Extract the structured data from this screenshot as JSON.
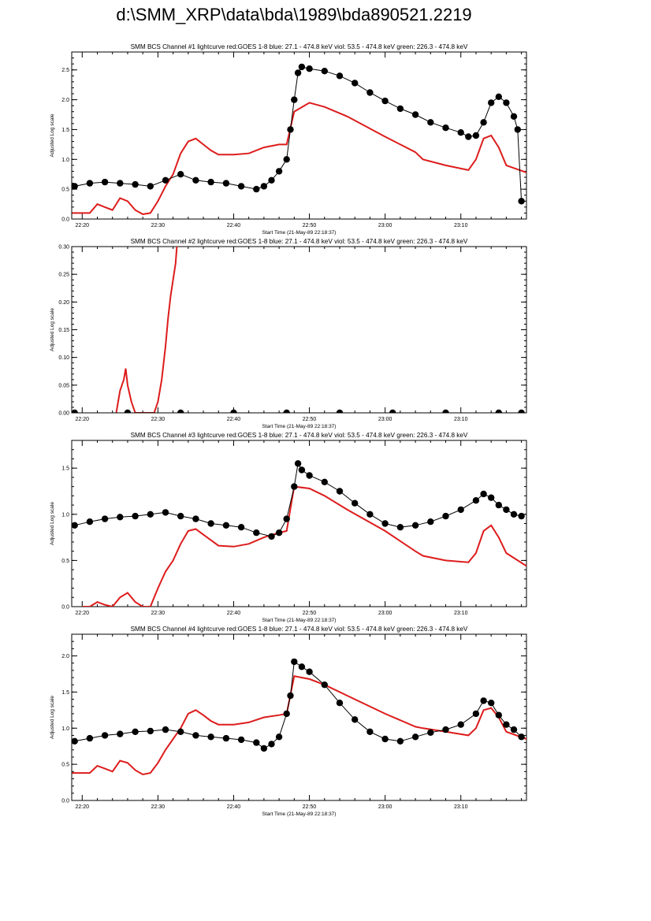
{
  "page": {
    "title": "d:\\SMM_XRP\\data\\bda\\1989\\bda890521.2219"
  },
  "colors": {
    "goes": "#dd1c1c",
    "bcs": "#000000",
    "axis": "#000000",
    "background": "#ffffff"
  },
  "chart_data": [
    {
      "type": "line",
      "title": "SMM BCS Channel #1 lightcurve  red:GOES 1-8  blue: 27.1 - 474.8 keV  viol: 53.5 - 474.8 keV  green: 226.3 - 474.8 keV",
      "xlabel": "Start Time (21-May-89 22:18:37)",
      "ylabel": "Adjusted Log scale",
      "xlim": [
        "22:18:37",
        "23:18:40"
      ],
      "ylim": [
        0.0,
        2.8
      ],
      "x_ticks": [
        "22:20",
        "22:30",
        "22:40",
        "22:50",
        "23:00",
        "23:10"
      ],
      "y_ticks": [
        "0.0",
        "0.5",
        "1.0",
        "1.5",
        "2.0",
        "2.5"
      ],
      "series": [
        {
          "name": "GOES 1-8",
          "style": "line",
          "color": "#dd1c1c",
          "x": [
            "22:18:40",
            "22:21:00",
            "22:22:00",
            "22:23:00",
            "22:24:00",
            "22:25:00",
            "22:26:00",
            "22:27:00",
            "22:28:00",
            "22:29:00",
            "22:30:00",
            "22:31:00",
            "22:32:00",
            "22:33:00",
            "22:34:00",
            "22:35:00",
            "22:36:00",
            "22:37:00",
            "22:38:00",
            "22:40:00",
            "22:42:00",
            "22:44:00",
            "22:46:00",
            "22:47:00",
            "22:48:00",
            "22:50:00",
            "22:52:00",
            "22:55:00",
            "23:00:00",
            "23:04:00",
            "23:05:00",
            "23:08:00",
            "23:11:00",
            "23:12:00",
            "23:13:00",
            "23:14:00",
            "23:15:00",
            "23:16:00",
            "23:18:40"
          ],
          "y": [
            0.1,
            0.1,
            0.25,
            0.2,
            0.15,
            0.35,
            0.3,
            0.15,
            0.08,
            0.1,
            0.3,
            0.55,
            0.75,
            1.1,
            1.3,
            1.35,
            1.25,
            1.15,
            1.08,
            1.08,
            1.1,
            1.2,
            1.25,
            1.25,
            1.8,
            1.95,
            1.88,
            1.72,
            1.38,
            1.12,
            1.0,
            0.9,
            0.82,
            1.0,
            1.35,
            1.4,
            1.2,
            0.9,
            0.78
          ]
        },
        {
          "name": "BCS",
          "style": "dots",
          "color": "#000000",
          "x": [
            "22:19:00",
            "22:21:00",
            "22:23:00",
            "22:25:00",
            "22:27:00",
            "22:29:00",
            "22:31:00",
            "22:33:00",
            "22:35:00",
            "22:37:00",
            "22:39:00",
            "22:41:00",
            "22:43:00",
            "22:44:00",
            "22:45:00",
            "22:46:00",
            "22:47:00",
            "22:47:30",
            "22:48:00",
            "22:48:30",
            "22:49:00",
            "22:50:00",
            "22:52:00",
            "22:54:00",
            "22:56:00",
            "22:58:00",
            "23:00:00",
            "23:02:00",
            "23:04:00",
            "23:06:00",
            "23:08:00",
            "23:10:00",
            "23:11:00",
            "23:12:00",
            "23:13:00",
            "23:14:00",
            "23:15:00",
            "23:16:00",
            "23:17:00",
            "23:17:30",
            "23:18:00"
          ],
          "y": [
            0.55,
            0.6,
            0.62,
            0.6,
            0.58,
            0.55,
            0.65,
            0.75,
            0.65,
            0.62,
            0.6,
            0.55,
            0.5,
            0.55,
            0.65,
            0.8,
            1.0,
            1.5,
            2.0,
            2.45,
            2.55,
            2.52,
            2.48,
            2.4,
            2.28,
            2.12,
            1.98,
            1.85,
            1.75,
            1.62,
            1.53,
            1.45,
            1.38,
            1.4,
            1.62,
            1.95,
            2.05,
            1.95,
            1.72,
            1.5,
            0.3
          ]
        }
      ]
    },
    {
      "type": "line",
      "title": "SMM BCS Channel #2 lightcurve  red:GOES 1-8  blue: 27.1 - 474.8 keV  viol: 53.5 - 474.8 keV  green: 226.3 - 474.8 keV",
      "xlabel": "Start Time (21-May-89 22:18:37)",
      "ylabel": "Adjusted Log scale",
      "xlim": [
        "22:18:37",
        "23:18:40"
      ],
      "ylim": [
        0.0,
        0.3
      ],
      "x_ticks": [
        "22:20",
        "22:30",
        "22:40",
        "22:50",
        "23:00",
        "23:10"
      ],
      "y_ticks": [
        "0.00",
        "0.05",
        "0.10",
        "0.15",
        "0.20",
        "0.25",
        "0.30"
      ],
      "series": [
        {
          "name": "GOES 1-8",
          "style": "line",
          "color": "#dd1c1c",
          "x": [
            "22:24:30",
            "22:25:00",
            "22:25:30",
            "22:25:45",
            "22:26:00",
            "22:26:30",
            "22:27:00",
            "22:29:30",
            "22:30:00",
            "22:30:30",
            "22:31:00",
            "22:31:20",
            "22:31:40",
            "22:32:00",
            "22:32:20",
            "22:32:30"
          ],
          "y": [
            0.0,
            0.04,
            0.06,
            0.08,
            0.05,
            0.02,
            0.0,
            0.0,
            0.02,
            0.06,
            0.12,
            0.17,
            0.21,
            0.24,
            0.27,
            0.3
          ]
        },
        {
          "name": "BCS",
          "style": "dots",
          "color": "#000000",
          "x": [
            "22:19:00",
            "22:26:00",
            "22:33:00",
            "22:40:00",
            "22:47:00",
            "22:54:00",
            "23:01:00",
            "23:08:00",
            "23:15:00",
            "23:18:00"
          ],
          "y": [
            0.0,
            0.0,
            0.0,
            0.0,
            0.0,
            0.0,
            0.0,
            0.0,
            0.0,
            0.0
          ]
        }
      ]
    },
    {
      "type": "line",
      "title": "SMM BCS Channel #3 lightcurve  red:GOES 1-8  blue: 27.1 - 474.8 keV  viol: 53.5 - 474.8 keV  green: 226.3 - 474.8 keV",
      "xlabel": "Start Time (21-May-89 22:18:37)",
      "ylabel": "Adjusted Log scale",
      "xlim": [
        "22:18:37",
        "23:18:40"
      ],
      "ylim": [
        0.0,
        1.8
      ],
      "x_ticks": [
        "22:20",
        "22:30",
        "22:40",
        "22:50",
        "23:00",
        "23:10"
      ],
      "y_ticks": [
        "0.0",
        "0.5",
        "1.0",
        "1.5"
      ],
      "series": [
        {
          "name": "GOES 1-8",
          "style": "line",
          "color": "#dd1c1c",
          "x": [
            "22:20:00",
            "22:21:00",
            "22:22:00",
            "22:23:00",
            "22:24:00",
            "22:25:00",
            "22:26:00",
            "22:27:00",
            "22:28:00",
            "22:29:00",
            "22:30:00",
            "22:31:00",
            "22:32:00",
            "22:33:00",
            "22:34:00",
            "22:35:00",
            "22:36:00",
            "22:37:00",
            "22:38:00",
            "22:40:00",
            "22:42:00",
            "22:44:00",
            "22:46:00",
            "22:47:00",
            "22:48:00",
            "22:50:00",
            "22:52:00",
            "22:55:00",
            "23:00:00",
            "23:04:00",
            "23:05:00",
            "23:08:00",
            "23:11:00",
            "23:12:00",
            "23:13:00",
            "23:14:00",
            "23:15:00",
            "23:16:00",
            "23:18:40"
          ],
          "y": [
            0.0,
            0.0,
            0.05,
            0.02,
            0.0,
            0.1,
            0.15,
            0.05,
            0.0,
            0.0,
            0.2,
            0.38,
            0.5,
            0.68,
            0.82,
            0.84,
            0.78,
            0.72,
            0.66,
            0.65,
            0.68,
            0.75,
            0.8,
            0.82,
            1.3,
            1.28,
            1.2,
            1.05,
            0.82,
            0.6,
            0.55,
            0.5,
            0.48,
            0.58,
            0.82,
            0.88,
            0.75,
            0.58,
            0.44
          ]
        },
        {
          "name": "BCS",
          "style": "dots",
          "color": "#000000",
          "x": [
            "22:19:00",
            "22:21:00",
            "22:23:00",
            "22:25:00",
            "22:27:00",
            "22:29:00",
            "22:31:00",
            "22:33:00",
            "22:35:00",
            "22:37:00",
            "22:39:00",
            "22:41:00",
            "22:43:00",
            "22:45:00",
            "22:46:00",
            "22:47:00",
            "22:48:00",
            "22:48:30",
            "22:49:00",
            "22:50:00",
            "22:52:00",
            "22:54:00",
            "22:56:00",
            "22:58:00",
            "23:00:00",
            "23:02:00",
            "23:04:00",
            "23:06:00",
            "23:08:00",
            "23:10:00",
            "23:12:00",
            "23:13:00",
            "23:14:00",
            "23:15:00",
            "23:16:00",
            "23:17:00",
            "23:18:00"
          ],
          "y": [
            0.88,
            0.92,
            0.95,
            0.97,
            0.98,
            1.0,
            1.02,
            0.98,
            0.95,
            0.9,
            0.88,
            0.86,
            0.8,
            0.76,
            0.8,
            0.95,
            1.3,
            1.55,
            1.48,
            1.42,
            1.35,
            1.25,
            1.12,
            1.0,
            0.9,
            0.86,
            0.88,
            0.92,
            0.98,
            1.05,
            1.15,
            1.22,
            1.18,
            1.1,
            1.05,
            1.0,
            0.98
          ]
        }
      ]
    },
    {
      "type": "line",
      "title": "SMM BCS Channel #4 lightcurve  red:GOES 1-8  blue: 27.1 - 474.8 keV  viol: 53.5 - 474.8 keV  green: 226.3 - 474.8 keV",
      "xlabel": "Start Time (21-May-89 22:18:37)",
      "ylabel": "Adjusted Log scale",
      "xlim": [
        "22:18:37",
        "23:18:40"
      ],
      "ylim": [
        0.0,
        2.3
      ],
      "x_ticks": [
        "22:20",
        "22:30",
        "22:40",
        "22:50",
        "23:00",
        "23:10"
      ],
      "y_ticks": [
        "0.0",
        "0.5",
        "1.0",
        "1.5",
        "2.0"
      ],
      "series": [
        {
          "name": "GOES 1-8",
          "style": "line",
          "color": "#dd1c1c",
          "x": [
            "22:18:40",
            "22:21:00",
            "22:22:00",
            "22:23:00",
            "22:24:00",
            "22:25:00",
            "22:26:00",
            "22:27:00",
            "22:28:00",
            "22:29:00",
            "22:30:00",
            "22:31:00",
            "22:32:00",
            "22:33:00",
            "22:34:00",
            "22:35:00",
            "22:36:00",
            "22:37:00",
            "22:38:00",
            "22:40:00",
            "22:42:00",
            "22:44:00",
            "22:46:00",
            "22:47:00",
            "22:48:00",
            "22:50:00",
            "22:52:00",
            "22:55:00",
            "23:00:00",
            "23:04:00",
            "23:05:00",
            "23:08:00",
            "23:11:00",
            "23:12:00",
            "23:13:00",
            "23:14:00",
            "23:15:00",
            "23:16:00",
            "23:18:40"
          ],
          "y": [
            0.38,
            0.38,
            0.48,
            0.44,
            0.4,
            0.55,
            0.52,
            0.42,
            0.36,
            0.38,
            0.52,
            0.7,
            0.85,
            1.0,
            1.2,
            1.25,
            1.18,
            1.1,
            1.05,
            1.05,
            1.08,
            1.15,
            1.18,
            1.2,
            1.72,
            1.68,
            1.6,
            1.45,
            1.2,
            1.02,
            1.0,
            0.95,
            0.9,
            1.0,
            1.25,
            1.28,
            1.15,
            0.95,
            0.85
          ]
        },
        {
          "name": "BCS",
          "style": "dots",
          "color": "#000000",
          "x": [
            "22:19:00",
            "22:21:00",
            "22:23:00",
            "22:25:00",
            "22:27:00",
            "22:29:00",
            "22:31:00",
            "22:33:00",
            "22:35:00",
            "22:37:00",
            "22:39:00",
            "22:41:00",
            "22:43:00",
            "22:44:00",
            "22:45:00",
            "22:46:00",
            "22:47:00",
            "22:47:30",
            "22:48:00",
            "22:49:00",
            "22:50:00",
            "22:52:00",
            "22:54:00",
            "22:56:00",
            "22:58:00",
            "23:00:00",
            "23:02:00",
            "23:04:00",
            "23:06:00",
            "23:08:00",
            "23:10:00",
            "23:12:00",
            "23:13:00",
            "23:14:00",
            "23:15:00",
            "23:16:00",
            "23:17:00",
            "23:18:00"
          ],
          "y": [
            0.82,
            0.86,
            0.9,
            0.92,
            0.95,
            0.96,
            0.98,
            0.95,
            0.9,
            0.88,
            0.86,
            0.84,
            0.8,
            0.72,
            0.78,
            0.88,
            1.2,
            1.45,
            1.92,
            1.85,
            1.78,
            1.6,
            1.35,
            1.12,
            0.95,
            0.85,
            0.82,
            0.88,
            0.94,
            0.98,
            1.05,
            1.2,
            1.38,
            1.35,
            1.18,
            1.05,
            0.98,
            0.88
          ]
        }
      ]
    }
  ]
}
